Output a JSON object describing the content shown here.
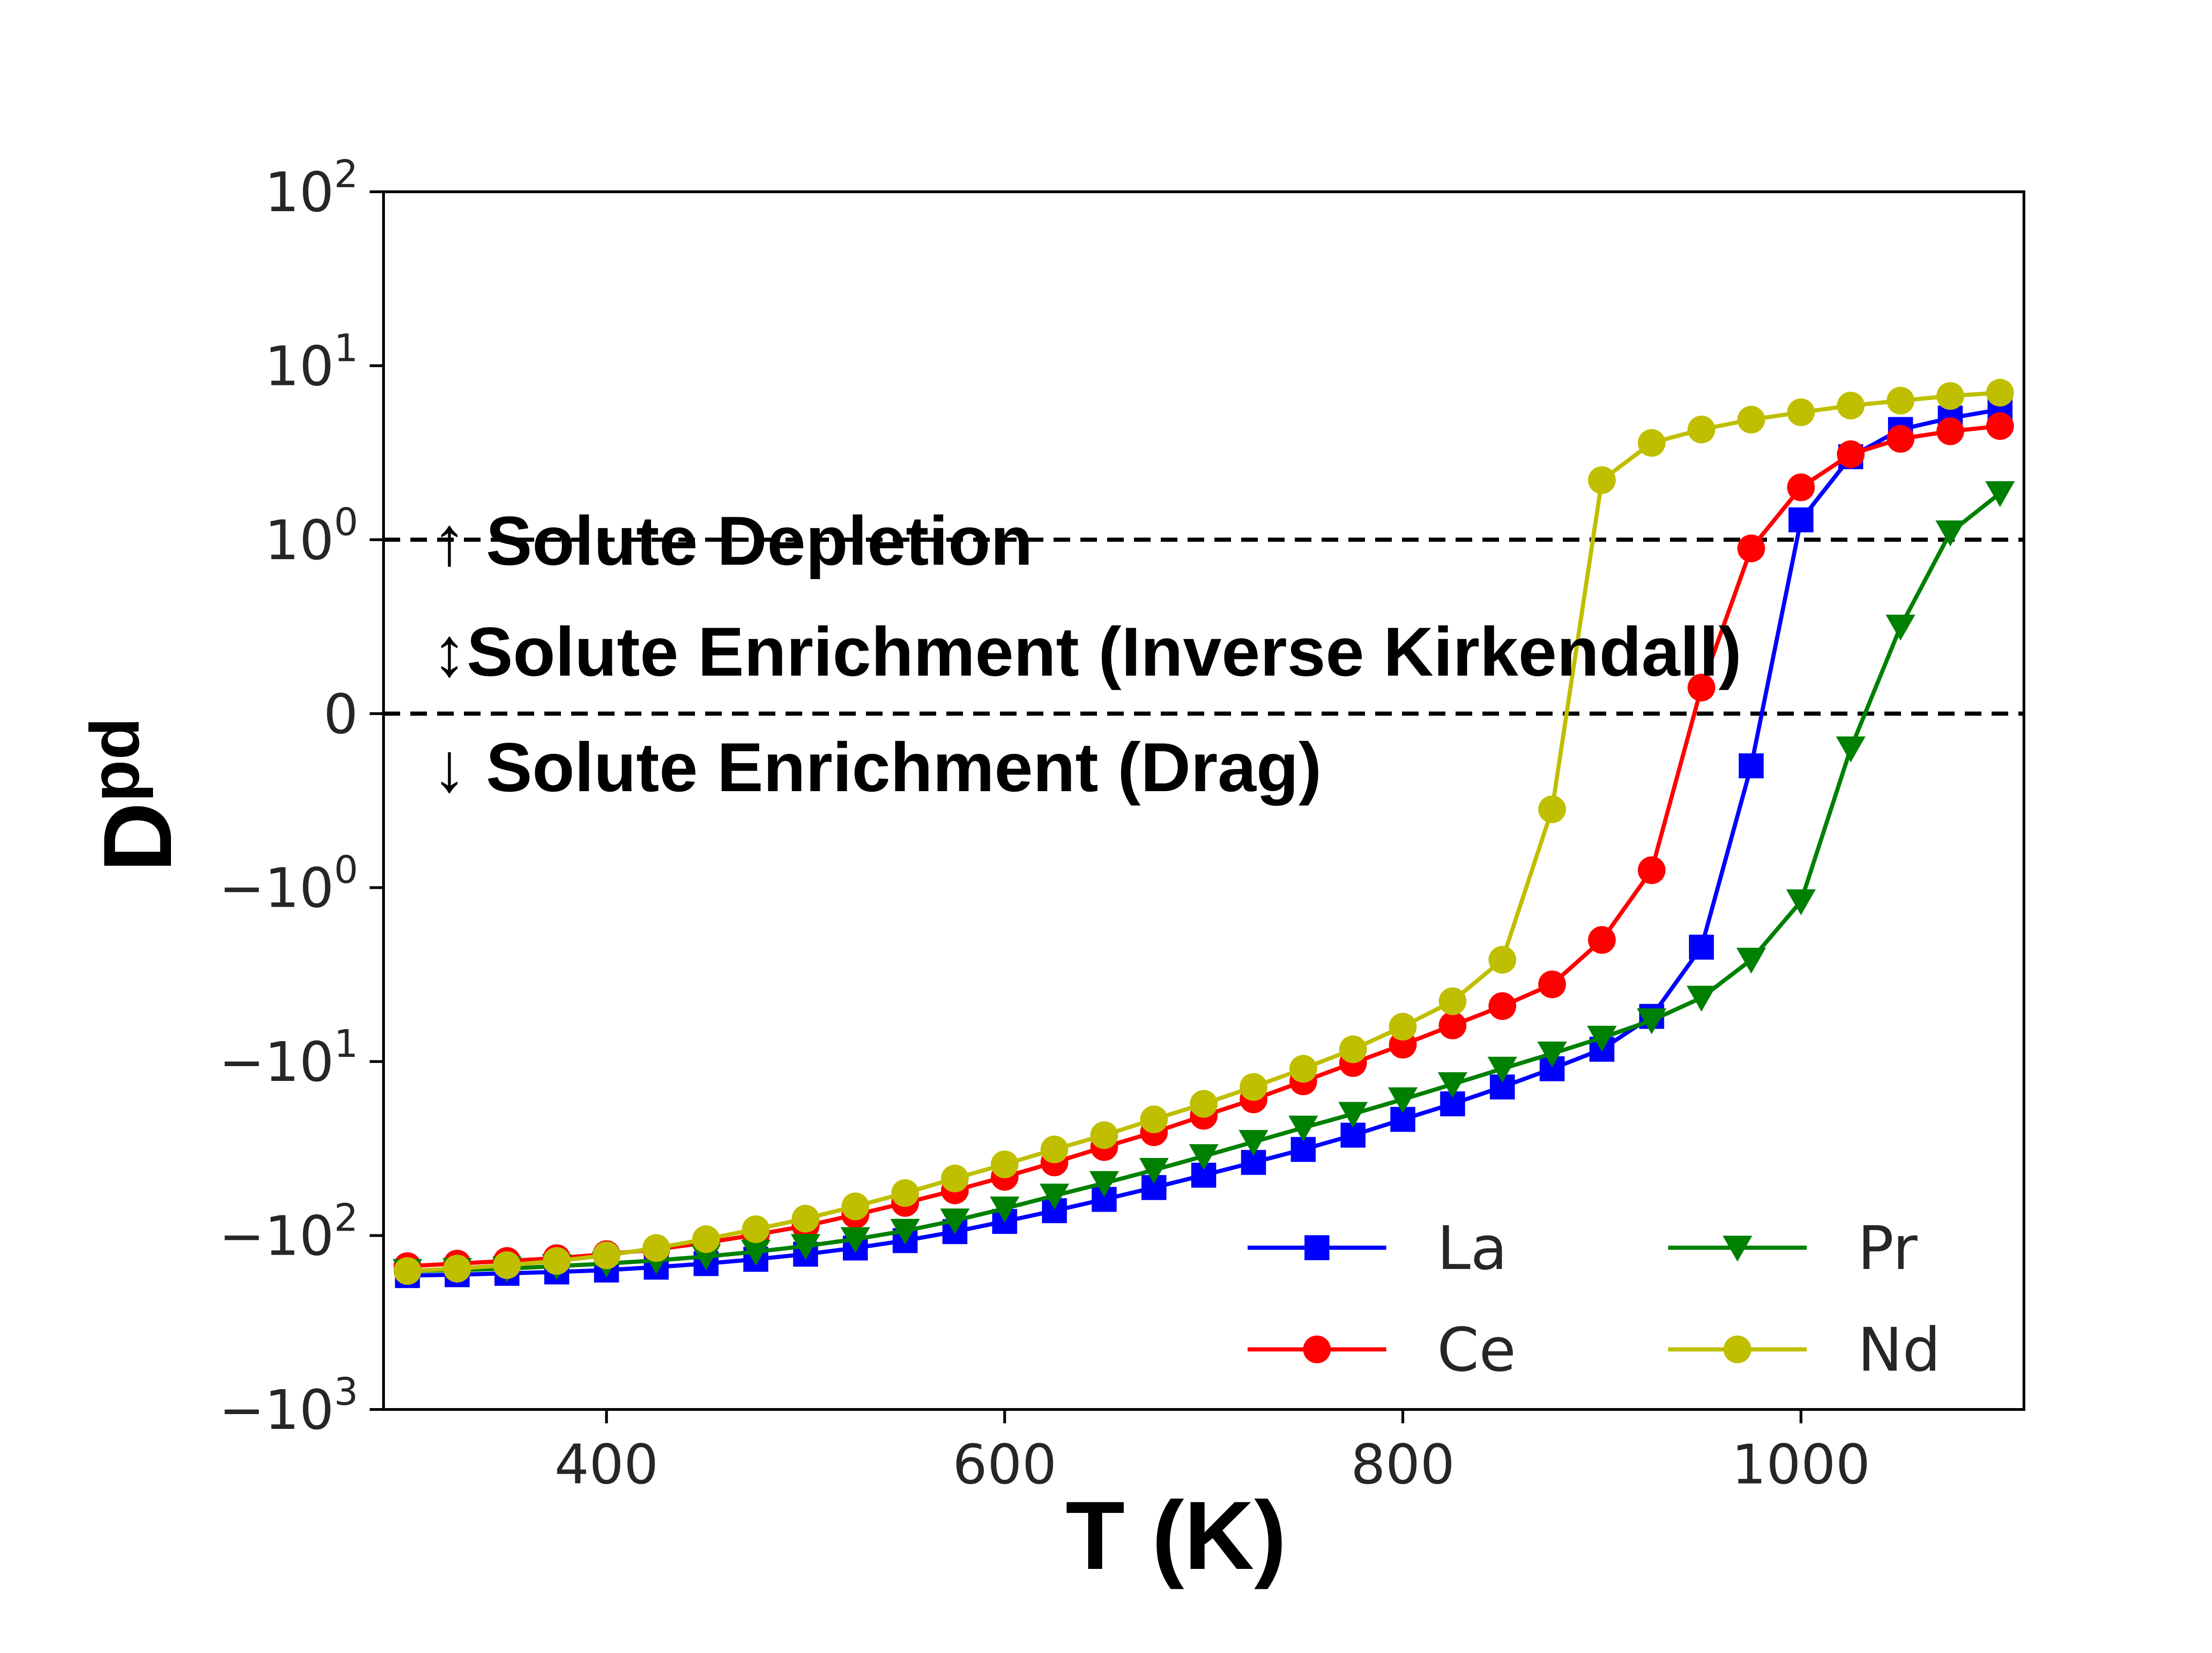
{
  "chart_data": {
    "type": "line",
    "xlabel": "T (K)",
    "ylabel": "D",
    "ylabel_subscript": "pd",
    "yscale": "symlog",
    "xlim": [
      288,
      1112
    ],
    "ylim": [
      -1000,
      100
    ],
    "xticks": [
      {
        "value": 400,
        "label": "400"
      },
      {
        "value": 600,
        "label": "600"
      },
      {
        "value": 800,
        "label": "800"
      },
      {
        "value": 1000,
        "label": "1000"
      }
    ],
    "yticks": [
      {
        "value": 100,
        "base": "10",
        "exp": "2"
      },
      {
        "value": 10,
        "base": "10",
        "exp": "1"
      },
      {
        "value": 1,
        "base": "10",
        "exp": "0"
      },
      {
        "value": 0,
        "base": "0",
        "exp": ""
      },
      {
        "value": -1,
        "base": "−10",
        "exp": "0"
      },
      {
        "value": -10,
        "base": "−10",
        "exp": "1"
      },
      {
        "value": -100,
        "base": "−10",
        "exp": "2"
      },
      {
        "value": -1000,
        "base": "−10",
        "exp": "3"
      }
    ],
    "reference_lines": [
      1,
      0
    ],
    "annotations": [
      {
        "id": "depletion",
        "arrow": "↑",
        "text": "Solute Depletion"
      },
      {
        "id": "inverse",
        "arrow": "↕",
        "text": "Solute Enrichment (Inverse Kirkendall)"
      },
      {
        "id": "drag",
        "arrow": "↓",
        "text": "Solute Enrichment (Drag)"
      }
    ],
    "legend_position": "lower-right",
    "x": [
      300,
      325,
      350,
      375,
      400,
      425,
      450,
      475,
      500,
      525,
      550,
      575,
      600,
      625,
      650,
      675,
      700,
      725,
      750,
      775,
      800,
      825,
      850,
      875,
      900,
      925,
      950,
      975,
      1000,
      1025,
      1050,
      1075,
      1100
    ],
    "series": [
      {
        "name": "La",
        "color": "#0000ff",
        "marker": "square",
        "values": [
          -170,
          -168,
          -165,
          -162,
          -158,
          -152,
          -145,
          -137,
          -128,
          -118,
          -107,
          -95,
          -83,
          -72,
          -62,
          -53,
          -45,
          -38,
          -32,
          -26.5,
          -21.5,
          -17.5,
          -14,
          -11,
          -8.5,
          -5.5,
          -2.2,
          -0.3,
          1.3,
          3.0,
          4.3,
          5.0,
          5.6
        ]
      },
      {
        "name": "Ce",
        "color": "#ff0000",
        "marker": "circle",
        "values": [
          -150,
          -145,
          -140,
          -135,
          -128,
          -120,
          -110,
          -99,
          -88,
          -76,
          -65,
          -55,
          -46,
          -38,
          -31,
          -25.5,
          -20.5,
          -16.5,
          -13,
          -10.2,
          -8,
          -6.2,
          -4.8,
          -3.6,
          -2.0,
          -0.9,
          0.15,
          0.95,
          2.0,
          3.1,
          3.8,
          4.2,
          4.5
        ]
      },
      {
        "name": "Pr",
        "color": "#008000",
        "marker": "triangle-down",
        "values": [
          -160,
          -158,
          -155,
          -150,
          -145,
          -139,
          -132,
          -124,
          -115,
          -105,
          -94,
          -82,
          -70,
          -59,
          -50,
          -42,
          -35,
          -29,
          -24,
          -20,
          -16.5,
          -13.5,
          -11,
          -9,
          -7.3,
          -5.8,
          -4.3,
          -2.6,
          -1.2,
          -0.2,
          0.5,
          1.1,
          1.85
        ]
      },
      {
        "name": "Nd",
        "color": "#bfbf00",
        "marker": "circle",
        "values": [
          -160,
          -155,
          -148,
          -140,
          -130,
          -118,
          -105,
          -92,
          -80,
          -68,
          -57,
          -47,
          -39,
          -32,
          -26.5,
          -21.5,
          -17.5,
          -14,
          -11,
          -8.5,
          -6.3,
          -4.5,
          -2.6,
          -0.55,
          2.2,
          3.6,
          4.3,
          4.9,
          5.4,
          5.9,
          6.3,
          6.7,
          7.0
        ]
      }
    ]
  }
}
